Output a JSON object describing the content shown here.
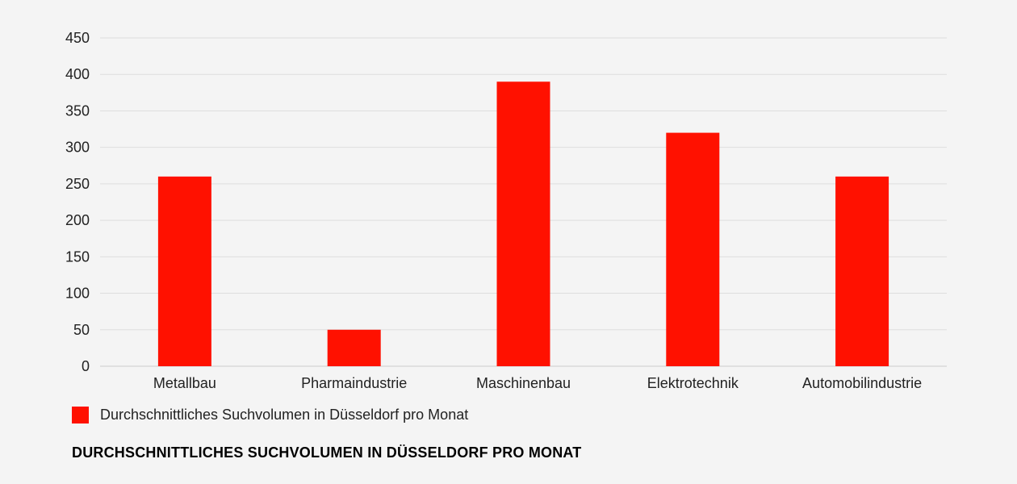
{
  "colors": {
    "bar": "#ff1100",
    "grid": "#dddddd",
    "axis": "#cccccc",
    "background": "#f4f4f4"
  },
  "legend": {
    "label": "Durchschnittliches Suchvolumen in Düsseldorf pro Monat"
  },
  "footer": {
    "title": "DURCHSCHNITTLICHES SUCHVOLUMEN IN DÜSSELDORF PRO MONAT"
  },
  "chart_data": {
    "type": "bar",
    "categories": [
      "Metallbau",
      "Pharmaindustrie",
      "Maschinenbau",
      "Elektrotechnik",
      "Automobilindustrie"
    ],
    "series": [
      {
        "name": "Durchschnittliches Suchvolumen in Düsseldorf pro Monat",
        "values": [
          260,
          50,
          390,
          320,
          260
        ],
        "color": "#ff1100"
      }
    ],
    "ylim": [
      0,
      450
    ],
    "yticks": [
      0,
      50,
      100,
      150,
      200,
      250,
      300,
      350,
      400,
      450
    ],
    "grid": true,
    "legend_position": "bottom-left",
    "xlabel": "",
    "ylabel": ""
  }
}
